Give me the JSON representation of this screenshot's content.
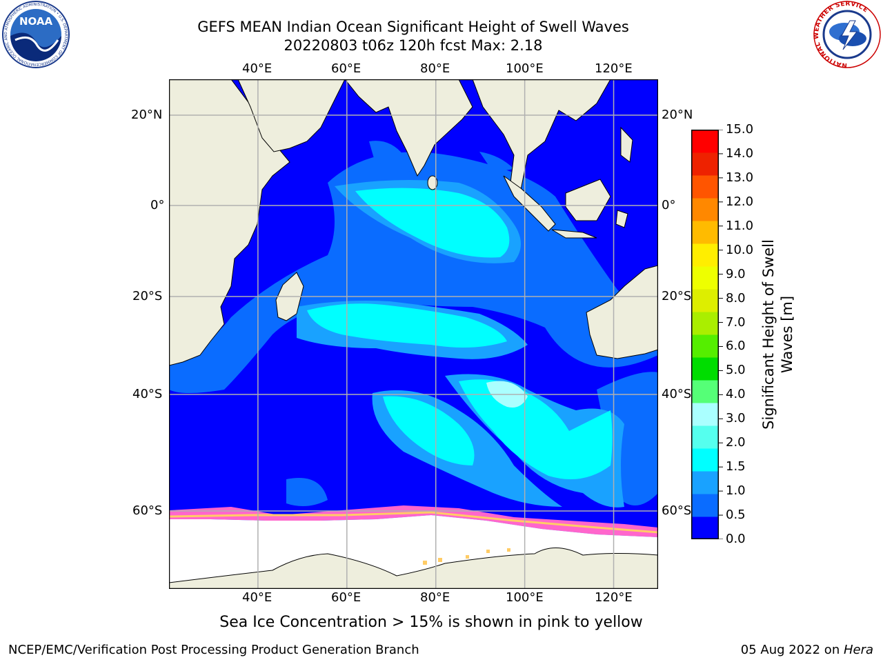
{
  "title": {
    "line1": "GEFS MEAN Indian Ocean Significant Height of Swell Waves",
    "line2": "20220803 t06z 120h fcst   Max: 2.18"
  },
  "map": {
    "lon_ticks": [
      "40°E",
      "60°E",
      "80°E",
      "100°E",
      "120°E"
    ],
    "lat_ticks": [
      "20°N",
      "0°",
      "20°S",
      "40°S",
      "60°S"
    ],
    "lon_range": [
      20,
      130
    ],
    "lat_range": [
      -75,
      28
    ],
    "colors": {
      "land": "#eeeedd",
      "ice_free_ocean_low": "#0000ff",
      "sea_ice": [
        "#ff66cc",
        "#ffcc66",
        "#ffff66"
      ]
    }
  },
  "colorbar": {
    "label": "Significant Height of Swell Waves [m]",
    "tick_labels": [
      "15.0",
      "14.0",
      "13.0",
      "12.0",
      "11.0",
      "10.0",
      "9.0",
      "8.0",
      "7.0",
      "6.0",
      "5.0",
      "4.0",
      "3.0",
      "2.0",
      "1.5",
      "1.0",
      "0.5",
      "0.0"
    ],
    "bounds": [
      0,
      0.5,
      1,
      1.5,
      2,
      3,
      4,
      5,
      6,
      7,
      8,
      9,
      10,
      11,
      12,
      13,
      14,
      15
    ],
    "colors": [
      "#0000ff",
      "#0a6cff",
      "#19a2ff",
      "#00ffff",
      "#55ffee",
      "#aaffff",
      "#55ff77",
      "#00dd00",
      "#55ee00",
      "#aaee00",
      "#ddee00",
      "#eeff00",
      "#ffee00",
      "#ffbb00",
      "#ff8800",
      "#ff5500",
      "#ee2200",
      "#ff0000"
    ]
  },
  "caption": "Sea Ice Concentration > 15% is shown in pink to yellow",
  "footer": {
    "left": "NCEP/EMC/Verification Post Processing Product Generation Branch",
    "right_date": "05 Aug 2022 on ",
    "right_host": "Hera"
  },
  "logos": {
    "noaa_text": "NOAA",
    "noaa_ring": "NATIONAL OCEANIC AND ATMOSPHERIC ADMINISTRATION • U.S. DEPARTMENT OF COMMERCE",
    "nws_ring": "NATIONAL WEATHER SERVICE"
  }
}
